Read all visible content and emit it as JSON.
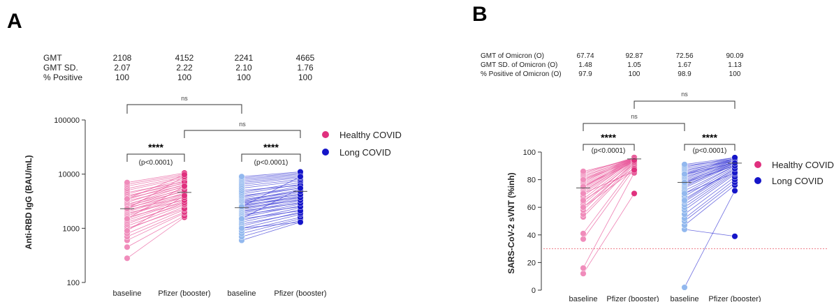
{
  "panels": [
    {
      "letter": "A",
      "stats": {
        "rows": [
          {
            "label": "GMT",
            "values": [
              "2108",
              "4152",
              "2241",
              "4665"
            ]
          },
          {
            "label": "GMT SD.",
            "values": [
              "2.07",
              "2.22",
              "2.10",
              "1.76"
            ]
          },
          {
            "label": "% Positive",
            "values": [
              "100",
              "100",
              "100",
              "100"
            ]
          }
        ]
      },
      "brackets": {
        "ns_top": "ns",
        "ns_mid": "ns",
        "stars_1": "****",
        "p_1": "(p<0.0001)",
        "stars_2": "****",
        "p_2": "(p<0.0001)"
      }
    },
    {
      "letter": "B",
      "stats": {
        "rows": [
          {
            "label": "GMT of Omicron (O)",
            "values": [
              "67.74",
              "92.87",
              "72.56",
              "90.09"
            ]
          },
          {
            "label": "GMT SD. of Omicron (O)",
            "values": [
              "1.48",
              "1.05",
              "1.67",
              "1.13"
            ]
          },
          {
            "label": "% Positive of Omicron (O)",
            "values": [
              "97.9",
              "100",
              "98.9",
              "100"
            ]
          }
        ]
      },
      "brackets": {
        "ns_top": "ns",
        "ns_mid": "ns",
        "stars_1": "****",
        "p_1": "(p<0.0001)",
        "stars_2": "****",
        "p_2": "(p<0.0001)"
      }
    }
  ],
  "chart_data": [
    {
      "type": "scatter",
      "subtype": "paired-before-after",
      "ylabel": "Anti-RBD IgG (BAU/mL)",
      "yscale": "log",
      "ylim": [
        100,
        100000
      ],
      "yticks": [
        "100",
        "1000",
        "10000",
        "100000"
      ],
      "categories": [
        "baseline",
        "Pfizer (booster)",
        "baseline",
        "Pfizer (booster)"
      ],
      "legend": {
        "placement": "right",
        "entries": [
          {
            "name": "Healthy COVID",
            "color": "#e0307e"
          },
          {
            "name": "Long COVID",
            "color": "#1515c8"
          }
        ]
      },
      "series": [
        {
          "name": "Healthy COVID",
          "color_baseline": "#f08cbb",
          "color_booster": "#e0307e",
          "line_color": "#e8559a",
          "pairs": [
            [
              280,
              1600
            ],
            [
              450,
              1700
            ],
            [
              600,
              1900
            ],
            [
              700,
              2000
            ],
            [
              800,
              2200
            ],
            [
              950,
              2500
            ],
            [
              1000,
              2300
            ],
            [
              1100,
              2700
            ],
            [
              1200,
              3000
            ],
            [
              1300,
              2800
            ],
            [
              1400,
              3200
            ],
            [
              1500,
              3500
            ],
            [
              1600,
              3000
            ],
            [
              1700,
              3800
            ],
            [
              1800,
              4000
            ],
            [
              1900,
              3300
            ],
            [
              2000,
              4200
            ],
            [
              2100,
              4500
            ],
            [
              2200,
              3700
            ],
            [
              2300,
              5000
            ],
            [
              2400,
              4300
            ],
            [
              2500,
              5500
            ],
            [
              2600,
              4800
            ],
            [
              2700,
              6000
            ],
            [
              2800,
              5200
            ],
            [
              3000,
              6500
            ],
            [
              3200,
              5800
            ],
            [
              3400,
              7000
            ],
            [
              3600,
              6200
            ],
            [
              3800,
              7500
            ],
            [
              4000,
              6800
            ],
            [
              4300,
              8000
            ],
            [
              4600,
              7200
            ],
            [
              5000,
              8500
            ],
            [
              5400,
              9000
            ],
            [
              6000,
              9500
            ],
            [
              6500,
              10000
            ],
            [
              7000,
              10500
            ],
            [
              2300,
              9000
            ],
            [
              1500,
              6000
            ],
            [
              900,
              4000
            ],
            [
              3500,
              9800
            ]
          ],
          "median": [
            2300,
            4600
          ]
        },
        {
          "name": "Long COVID",
          "color_baseline": "#92b8ee",
          "color_booster": "#1515c8",
          "line_color": "#3b3bd6",
          "pairs": [
            [
              600,
              1300
            ],
            [
              700,
              1400
            ],
            [
              800,
              1500
            ],
            [
              900,
              1600
            ],
            [
              1000,
              1800
            ],
            [
              1100,
              2000
            ],
            [
              1200,
              1900
            ],
            [
              1300,
              2200
            ],
            [
              1400,
              2400
            ],
            [
              1500,
              2100
            ],
            [
              1600,
              2600
            ],
            [
              1700,
              2800
            ],
            [
              1800,
              2500
            ],
            [
              1900,
              3000
            ],
            [
              2000,
              3200
            ],
            [
              2100,
              2900
            ],
            [
              2200,
              3400
            ],
            [
              2300,
              3600
            ],
            [
              2400,
              3300
            ],
            [
              2500,
              3800
            ],
            [
              2600,
              4000
            ],
            [
              2700,
              3700
            ],
            [
              2800,
              4300
            ],
            [
              2900,
              4600
            ],
            [
              3000,
              4200
            ],
            [
              3100,
              4900
            ],
            [
              3200,
              5200
            ],
            [
              3400,
              4800
            ],
            [
              3600,
              5600
            ],
            [
              3800,
              6000
            ],
            [
              4000,
              5500
            ],
            [
              4300,
              6500
            ],
            [
              4600,
              7000
            ],
            [
              5000,
              6200
            ],
            [
              5500,
              7500
            ],
            [
              6000,
              8000
            ],
            [
              6500,
              8600
            ],
            [
              7000,
              9000
            ],
            [
              7500,
              9500
            ],
            [
              8000,
              10000
            ],
            [
              8500,
              10500
            ],
            [
              9000,
              11000
            ],
            [
              2500,
              9000
            ],
            [
              1500,
              5500
            ],
            [
              1000,
              1300
            ]
          ],
          "median": [
            2400,
            4800
          ]
        }
      ]
    },
    {
      "type": "scatter",
      "subtype": "paired-before-after",
      "ylabel": "SARS-CoV-2 sVNT (%inh)",
      "yscale": "linear",
      "ylim": [
        0,
        100
      ],
      "yticks": [
        "0",
        "20",
        "40",
        "60",
        "80",
        "100"
      ],
      "categories": [
        "baseline",
        "Pfizer (booster)",
        "baseline",
        "Pfizer (booster)"
      ],
      "threshold": 30,
      "legend": {
        "placement": "right",
        "entries": [
          {
            "name": "Healthy COVID",
            "color": "#e0307e"
          },
          {
            "name": "Long COVID",
            "color": "#1515c8"
          }
        ]
      },
      "series": [
        {
          "name": "Healthy COVID",
          "color_baseline": "#f08cbb",
          "color_booster": "#e0307e",
          "line_color": "#e8559a",
          "pairs": [
            [
              12,
              70
            ],
            [
              16,
              85
            ],
            [
              37,
              88
            ],
            [
              41,
              90
            ],
            [
              53,
              91
            ],
            [
              55,
              92
            ],
            [
              58,
              93
            ],
            [
              60,
              92
            ],
            [
              62,
              94
            ],
            [
              64,
              93
            ],
            [
              66,
              94
            ],
            [
              68,
              95
            ],
            [
              70,
              94
            ],
            [
              71,
              95
            ],
            [
              72,
              94
            ],
            [
              73,
              95
            ],
            [
              74,
              96
            ],
            [
              75,
              95
            ],
            [
              76,
              94
            ],
            [
              77,
              95
            ],
            [
              78,
              96
            ],
            [
              79,
              95
            ],
            [
              80,
              96
            ],
            [
              81,
              95
            ],
            [
              82,
              96
            ],
            [
              83,
              95
            ],
            [
              84,
              96
            ],
            [
              85,
              96
            ],
            [
              86,
              95
            ],
            [
              70,
              86
            ],
            [
              65,
              88
            ],
            [
              60,
              87
            ],
            [
              75,
              93
            ],
            [
              80,
              94
            ]
          ],
          "median": [
            74,
            95
          ]
        },
        {
          "name": "Long COVID",
          "color_baseline": "#92b8ee",
          "color_booster": "#1515c8",
          "line_color": "#3b3bd6",
          "pairs": [
            [
              2,
              72
            ],
            [
              44,
              39
            ],
            [
              47,
              76
            ],
            [
              50,
              78
            ],
            [
              52,
              80
            ],
            [
              55,
              82
            ],
            [
              58,
              84
            ],
            [
              60,
              85
            ],
            [
              62,
              86
            ],
            [
              64,
              87
            ],
            [
              66,
              88
            ],
            [
              68,
              89
            ],
            [
              70,
              90
            ],
            [
              72,
              90
            ],
            [
              74,
              91
            ],
            [
              75,
              92
            ],
            [
              76,
              91
            ],
            [
              77,
              92
            ],
            [
              78,
              93
            ],
            [
              79,
              92
            ],
            [
              80,
              93
            ],
            [
              81,
              94
            ],
            [
              82,
              93
            ],
            [
              83,
              94
            ],
            [
              84,
              95
            ],
            [
              85,
              94
            ],
            [
              86,
              95
            ],
            [
              87,
              94
            ],
            [
              88,
              95
            ],
            [
              89,
              96
            ],
            [
              90,
              95
            ],
            [
              91,
              96
            ],
            [
              70,
              85
            ],
            [
              65,
              88
            ],
            [
              78,
              90
            ],
            [
              84,
              92
            ]
          ],
          "median": [
            78,
            92
          ]
        }
      ]
    }
  ]
}
